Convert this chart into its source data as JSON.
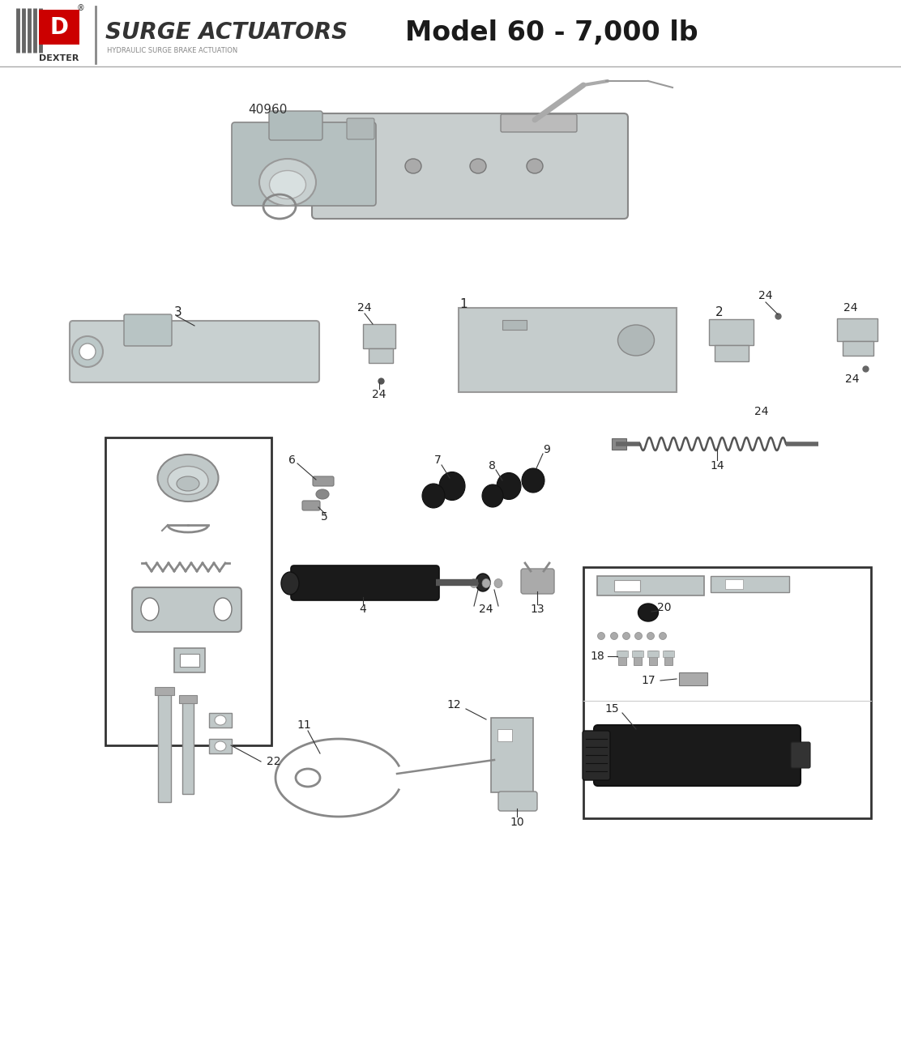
{
  "title_surge": "SURGE ACTUATORS",
  "title_model": "Model 60 - 7,000 lb",
  "subtitle": "HYDRAULIC SURGE BRAKE ACTUATION",
  "dexter_text": "DEXTER",
  "part_number_main": "40960",
  "background_color": "#ffffff",
  "border_color": "#000000",
  "header_line_color": "#cccccc",
  "red_color": "#cc0000",
  "dark_color": "#333333"
}
